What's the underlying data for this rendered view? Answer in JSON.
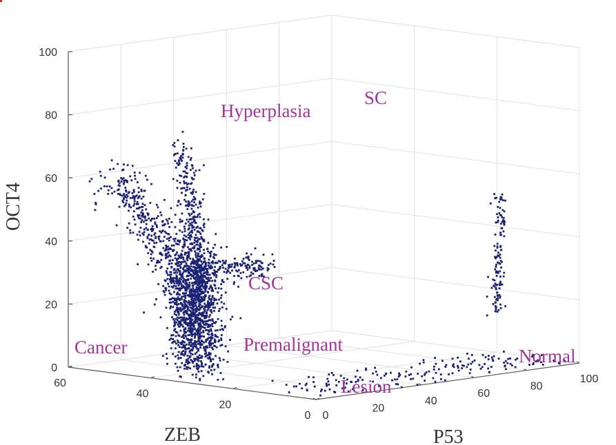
{
  "chart_data": {
    "type": "scatter",
    "subtype": "3d-density-scatter",
    "title": "",
    "xlabel": "ZEB",
    "ylabel": "P53",
    "zlabel": "OCT4",
    "xlim": [
      0,
      60
    ],
    "ylim": [
      0,
      100
    ],
    "zlim": [
      0,
      100
    ],
    "x_ticks": [
      0,
      20,
      40,
      60
    ],
    "y_ticks": [
      0,
      20,
      40,
      60,
      80,
      100
    ],
    "z_ticks": [
      0,
      20,
      40,
      60,
      80,
      100
    ],
    "grid": true,
    "colormap": "parula",
    "colors": {
      "annotation": "#a0369a",
      "low_density": "#1b1f6e",
      "high_density": "#d9201c"
    },
    "clusters": [
      {
        "label": "Cancer",
        "zeb": 45,
        "p53": 2,
        "oct4": 1
      },
      {
        "label": "Premalignant Lesion",
        "zeb": 2,
        "p53": 3,
        "oct4": 2
      },
      {
        "label": "Normal",
        "zeb": 3,
        "p53": 90,
        "oct4": 3
      },
      {
        "label": "SC",
        "zeb": 1,
        "p53": 70,
        "oct4": 64
      },
      {
        "label": "Hyperplasia",
        "zeb": 8,
        "p53": 8,
        "oct4": 62
      },
      {
        "label": "CSC",
        "zeb": 12,
        "p53": 2,
        "oct4": 36
      }
    ],
    "annotations": [
      {
        "text": "Hyperplasia"
      },
      {
        "text": "SC"
      },
      {
        "text": "CSC"
      },
      {
        "text": "Cancer"
      },
      {
        "text": "Premalignant"
      },
      {
        "text": "Lesion"
      },
      {
        "text": "Normal"
      }
    ]
  }
}
